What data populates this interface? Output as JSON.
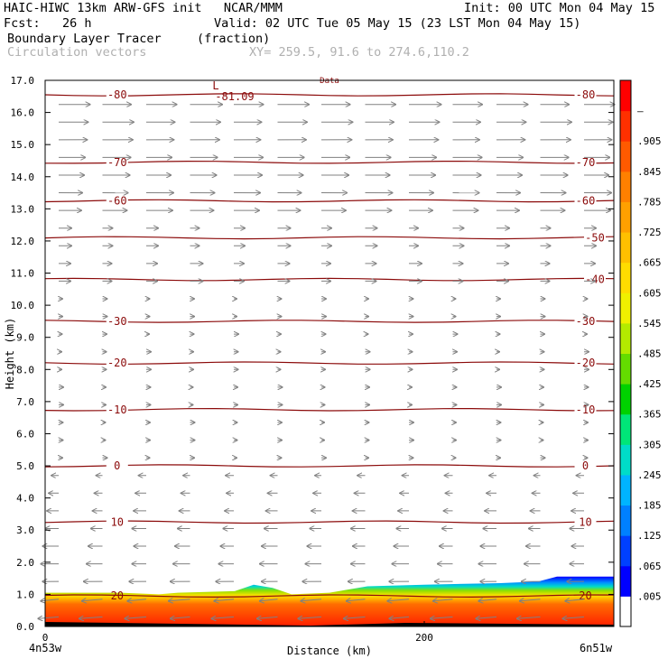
{
  "header": {
    "title_line1": "HAIC-HIWC 13km ARW-GFS init   NCAR/MMM",
    "init": "Init: 00 UTC Mon 04 May 15",
    "fcst": "Fcst:   26 h",
    "valid": "Valid: 02 UTC Tue 05 May 15 (23 LST Mon 04 May 15)",
    "field_name": "Boundary Layer Tracer",
    "field_units": "(fraction)",
    "vector_label": "Circulation vectors",
    "xy_label": "XY= 259.5, 91.6 to 274.6,110.2"
  },
  "chart_data": {
    "type": "heatmap",
    "title": "Boundary Layer Tracer",
    "xlabel": "Distance (km)",
    "ylabel": "Height (km)",
    "xlim": [
      0,
      300
    ],
    "ylim": [
      0,
      17
    ],
    "x_ticks": [
      0,
      200
    ],
    "x_endpoints": [
      "4n53w",
      "6n51w"
    ],
    "y_ticks": [
      "0.0",
      "1.0",
      "2.0",
      "3.0",
      "4.0",
      "5.0",
      "6.0",
      "7.0",
      "8.0",
      "9.0",
      "10.0",
      "11.0",
      "12.0",
      "13.0",
      "14.0",
      "15.0",
      "16.0",
      "17.0"
    ],
    "colorbar_labels": [
      ".005",
      ".065",
      ".125",
      ".185",
      ".245",
      ".305",
      ".365",
      ".425",
      ".485",
      ".545",
      ".605",
      ".665",
      ".725",
      ".785",
      ".845",
      ".905",
      "–"
    ],
    "colorbar_colors": [
      "#ffffff",
      "#0000ff",
      "#0040ff",
      "#0080ff",
      "#00b4ff",
      "#00dcc8",
      "#00e678",
      "#00d200",
      "#64dc00",
      "#b4eb00",
      "#f0f000",
      "#ffdc00",
      "#ffc000",
      "#ffa000",
      "#ff8000",
      "#ff5a00",
      "#ff3000",
      "#ff0000"
    ],
    "tracer_top_km": [
      [
        0,
        1.05
      ],
      [
        40,
        1.05
      ],
      [
        60,
        1.0
      ],
      [
        70,
        1.05
      ],
      [
        100,
        1.1
      ],
      [
        110,
        1.3
      ],
      [
        120,
        1.2
      ],
      [
        130,
        1.0
      ],
      [
        150,
        1.05
      ],
      [
        170,
        1.25
      ],
      [
        200,
        1.3
      ],
      [
        240,
        1.35
      ],
      [
        260,
        1.4
      ],
      [
        270,
        1.55
      ],
      [
        300,
        1.55
      ]
    ],
    "isotherms": [
      {
        "value": -80,
        "height_km": 16.55,
        "labels": [
          "-80",
          "-80"
        ]
      },
      {
        "value": -70,
        "height_km": 14.45,
        "labels": [
          "-70",
          "-70"
        ]
      },
      {
        "value": -60,
        "height_km": 13.25,
        "labels": [
          "-60",
          "-60"
        ]
      },
      {
        "value": -50,
        "height_km": 12.1,
        "labels": [
          "-50"
        ]
      },
      {
        "value": -40,
        "height_km": 10.8,
        "labels": [
          "-40"
        ]
      },
      {
        "value": -30,
        "height_km": 9.5,
        "labels": [
          "-30",
          "-30"
        ]
      },
      {
        "value": -20,
        "height_km": 8.2,
        "labels": [
          "-20",
          "-20"
        ]
      },
      {
        "value": -10,
        "height_km": 6.75,
        "labels": [
          "-10",
          "-10"
        ]
      },
      {
        "value": 0,
        "height_km": 5.0,
        "labels": [
          "0",
          "0"
        ]
      },
      {
        "value": 10,
        "height_km": 3.25,
        "labels": [
          "10",
          "10"
        ]
      },
      {
        "value": 20,
        "height_km": 0.95,
        "labels": [
          "20",
          "20"
        ]
      }
    ],
    "extra_labels": [
      "L",
      "-81.09",
      "Data"
    ]
  }
}
